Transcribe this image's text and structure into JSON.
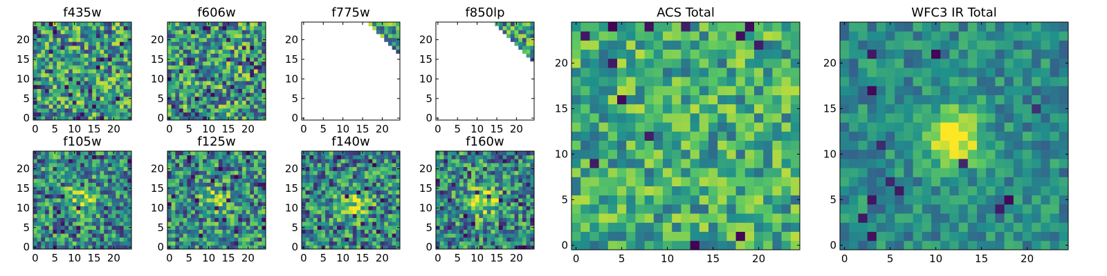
{
  "figure": {
    "colormap": "viridis",
    "colormap_stops": [
      "#440154",
      "#3b528b",
      "#21918c",
      "#5ec962",
      "#fde725"
    ]
  },
  "chart_data": [
    {
      "type": "heatmap",
      "title": "f435w",
      "grid_size": 25,
      "xlim": [
        0,
        24
      ],
      "ylim": [
        0,
        24
      ],
      "xticks": [
        0,
        5,
        10,
        15,
        20
      ],
      "yticks": [
        0,
        5,
        10,
        15,
        20
      ],
      "pattern": "noise",
      "seed": 11,
      "description_values": "pixel noise image, mean intensity ~0.6"
    },
    {
      "type": "heatmap",
      "title": "f606w",
      "grid_size": 25,
      "xlim": [
        0,
        24
      ],
      "ylim": [
        0,
        24
      ],
      "xticks": [
        0,
        5,
        10,
        15,
        20
      ],
      "yticks": [
        0,
        5,
        10,
        15,
        20
      ],
      "pattern": "noise",
      "seed": 23
    },
    {
      "type": "heatmap",
      "title": "f775w",
      "grid_size": 25,
      "xlim": [
        0,
        24
      ],
      "ylim": [
        0,
        24
      ],
      "xticks": [
        0,
        5,
        10,
        15,
        20
      ],
      "yticks": [
        0,
        5,
        10,
        15,
        20
      ],
      "pattern": "corner",
      "seed": 37,
      "corner_threshold": 41
    },
    {
      "type": "heatmap",
      "title": "f850lp",
      "grid_size": 25,
      "xlim": [
        0,
        24
      ],
      "ylim": [
        0,
        24
      ],
      "xticks": [
        0,
        5,
        10,
        15,
        20
      ],
      "yticks": [
        0,
        5,
        10,
        15,
        20
      ],
      "pattern": "corner",
      "seed": 41,
      "corner_threshold": 39
    },
    {
      "type": "heatmap",
      "title": "f105w",
      "grid_size": 25,
      "xlim": [
        0,
        24
      ],
      "ylim": [
        0,
        24
      ],
      "xticks": [
        0,
        5,
        10,
        15,
        20
      ],
      "yticks": [
        0,
        5,
        10,
        15,
        20
      ],
      "pattern": "source",
      "seed": 53,
      "source_center": [
        12,
        12
      ],
      "source_strength": 0.35
    },
    {
      "type": "heatmap",
      "title": "f125w",
      "grid_size": 25,
      "xlim": [
        0,
        24
      ],
      "ylim": [
        0,
        24
      ],
      "xticks": [
        0,
        5,
        10,
        15,
        20
      ],
      "yticks": [
        0,
        5,
        10,
        15,
        20
      ],
      "pattern": "source",
      "seed": 61,
      "source_center": [
        12,
        12
      ],
      "source_strength": 0.3
    },
    {
      "type": "heatmap",
      "title": "f140w",
      "grid_size": 25,
      "xlim": [
        0,
        24
      ],
      "ylim": [
        0,
        24
      ],
      "xticks": [
        0,
        5,
        10,
        15,
        20
      ],
      "yticks": [
        0,
        5,
        10,
        15,
        20
      ],
      "pattern": "source",
      "seed": 71,
      "source_center": [
        13,
        11
      ],
      "source_strength": 0.4
    },
    {
      "type": "heatmap",
      "title": "f160w",
      "grid_size": 25,
      "xlim": [
        0,
        24
      ],
      "ylim": [
        0,
        24
      ],
      "xticks": [
        0,
        5,
        10,
        15,
        20
      ],
      "yticks": [
        0,
        5,
        10,
        15,
        20
      ],
      "pattern": "source",
      "seed": 83,
      "source_center": [
        12,
        12
      ],
      "source_strength": 0.45
    },
    {
      "type": "heatmap",
      "title": "ACS Total",
      "grid_size": 25,
      "xlim": [
        0,
        24
      ],
      "ylim": [
        0,
        24
      ],
      "xticks": [
        0,
        5,
        10,
        15,
        20
      ],
      "yticks": [
        0,
        5,
        10,
        15,
        20
      ],
      "pattern": "noise_soft",
      "seed": 97
    },
    {
      "type": "heatmap",
      "title": "WFC3 IR Total",
      "grid_size": 25,
      "xlim": [
        0,
        24
      ],
      "ylim": [
        0,
        24
      ],
      "xticks": [
        0,
        5,
        10,
        15,
        20
      ],
      "yticks": [
        0,
        5,
        10,
        15,
        20
      ],
      "pattern": "source_smooth",
      "seed": 109,
      "source_center": [
        12,
        12
      ],
      "source_strength": 0.55
    }
  ]
}
